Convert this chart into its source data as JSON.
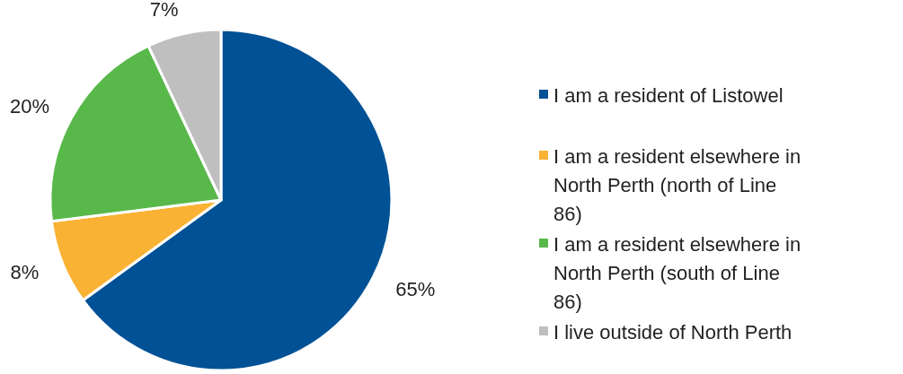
{
  "chart_data": {
    "type": "pie",
    "categories": [
      "I am a resident of Listowel",
      "I am a resident elsewhere in North Perth (north of Line 86)",
      "I am a resident elsewhere in North Perth (south of Line 86)",
      "I live outside of North Perth"
    ],
    "values": [
      65,
      8,
      20,
      7
    ],
    "colors": [
      "#005195",
      "#f9b233",
      "#58b84a",
      "#bfbfbf"
    ],
    "value_labels": [
      "65%",
      "8%",
      "20%",
      "7%"
    ],
    "legend": "right"
  }
}
